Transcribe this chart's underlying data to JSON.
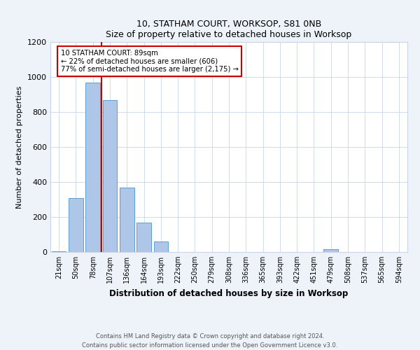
{
  "title1": "10, STATHAM COURT, WORKSOP, S81 0NB",
  "title2": "Size of property relative to detached houses in Worksop",
  "xlabel": "Distribution of detached houses by size in Worksop",
  "ylabel": "Number of detached properties",
  "categories": [
    "21sqm",
    "50sqm",
    "78sqm",
    "107sqm",
    "136sqm",
    "164sqm",
    "193sqm",
    "222sqm",
    "250sqm",
    "279sqm",
    "308sqm",
    "336sqm",
    "365sqm",
    "393sqm",
    "422sqm",
    "451sqm",
    "479sqm",
    "508sqm",
    "537sqm",
    "565sqm",
    "594sqm"
  ],
  "values": [
    5,
    310,
    970,
    870,
    370,
    170,
    60,
    0,
    0,
    0,
    0,
    0,
    0,
    0,
    0,
    0,
    15,
    0,
    0,
    0,
    0
  ],
  "bar_color": "#aec6e8",
  "bar_edge_color": "#5a9fd4",
  "red_line_x": 2.5,
  "annotation_lines": [
    "10 STATHAM COURT: 89sqm",
    "← 22% of detached houses are smaller (606)",
    "77% of semi-detached houses are larger (2,175) →"
  ],
  "annotation_box_color": "#ffffff",
  "annotation_box_edge": "#cc0000",
  "red_line_color": "#cc0000",
  "ylim": [
    0,
    1200
  ],
  "yticks": [
    0,
    200,
    400,
    600,
    800,
    1000,
    1200
  ],
  "footer1": "Contains HM Land Registry data © Crown copyright and database right 2024.",
  "footer2": "Contains public sector information licensed under the Open Government Licence v3.0.",
  "bg_color": "#eef2f9",
  "plot_bg_color": "#ffffff",
  "grid_color": "#c8d4e8"
}
